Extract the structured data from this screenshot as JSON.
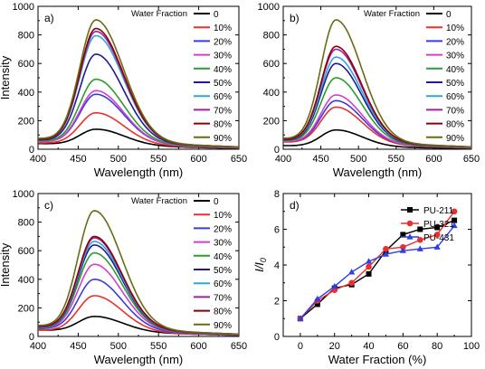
{
  "chart_data": [
    {
      "type": "line",
      "panel_label": "a)",
      "xlabel": "Wavelength (nm)",
      "ylabel": "Intensity",
      "xlim": [
        400,
        650
      ],
      "ylim": [
        0,
        1000
      ],
      "xticks": [
        "400",
        "450",
        "500",
        "550",
        "600",
        "650"
      ],
      "yticks": [
        "0",
        "200",
        "400",
        "600",
        "800",
        "1000"
      ],
      "legend_title": "Water Fraction",
      "legend_position": "top-right",
      "peak_nm": 472,
      "series": [
        {
          "name": "0",
          "color": "#000000",
          "peak": 140,
          "base_start": 40,
          "base_end": 5
        },
        {
          "name": "10%",
          "color": "#e8312f",
          "peak": 255,
          "base_start": 45,
          "base_end": 8
        },
        {
          "name": "20%",
          "color": "#3b3bd8",
          "peak": 385,
          "base_start": 55,
          "base_end": 10
        },
        {
          "name": "30%",
          "color": "#d040d0",
          "peak": 410,
          "base_start": 55,
          "base_end": 10
        },
        {
          "name": "40%",
          "color": "#2e9b2e",
          "peak": 490,
          "base_start": 60,
          "base_end": 12
        },
        {
          "name": "50%",
          "color": "#1c1c8e",
          "peak": 665,
          "base_start": 65,
          "base_end": 14
        },
        {
          "name": "60%",
          "color": "#2ea6e0",
          "peak": 795,
          "base_start": 70,
          "base_end": 15
        },
        {
          "name": "70%",
          "color": "#a020a0",
          "peak": 825,
          "base_start": 70,
          "base_end": 15
        },
        {
          "name": "80%",
          "color": "#8b0000",
          "peak": 845,
          "base_start": 70,
          "base_end": 16
        },
        {
          "name": "90%",
          "color": "#6b6b12",
          "peak": 905,
          "base_start": 75,
          "base_end": 16
        }
      ]
    },
    {
      "type": "line",
      "panel_label": "b)",
      "xlabel": "Wavelength (nm)",
      "ylabel": "",
      "xlim": [
        400,
        650
      ],
      "ylim": [
        0,
        1000
      ],
      "xticks": [
        "400",
        "450",
        "500",
        "550",
        "600",
        "650"
      ],
      "yticks": [
        "0",
        "200",
        "400",
        "600",
        "800",
        "1000"
      ],
      "legend_title": "Water Fraction",
      "legend_position": "top-right",
      "peak_nm": 470,
      "series": [
        {
          "name": "0",
          "color": "#000000",
          "peak": 135,
          "base_start": 25,
          "base_end": 5
        },
        {
          "name": "10%",
          "color": "#e8312f",
          "peak": 295,
          "base_start": 50,
          "base_end": 8
        },
        {
          "name": "20%",
          "color": "#3b3bd8",
          "peak": 340,
          "base_start": 55,
          "base_end": 10
        },
        {
          "name": "30%",
          "color": "#d040d0",
          "peak": 380,
          "base_start": 55,
          "base_end": 10
        },
        {
          "name": "40%",
          "color": "#2e9b2e",
          "peak": 500,
          "base_start": 60,
          "base_end": 12
        },
        {
          "name": "50%",
          "color": "#1c1c8e",
          "peak": 600,
          "base_start": 65,
          "base_end": 14
        },
        {
          "name": "60%",
          "color": "#2ea6e0",
          "peak": 645,
          "base_start": 70,
          "base_end": 15
        },
        {
          "name": "70%",
          "color": "#a020a0",
          "peak": 700,
          "base_start": 70,
          "base_end": 15
        },
        {
          "name": "80%",
          "color": "#8b0000",
          "peak": 720,
          "base_start": 70,
          "base_end": 16
        },
        {
          "name": "90%",
          "color": "#6b6b12",
          "peak": 905,
          "base_start": 75,
          "base_end": 16
        }
      ]
    },
    {
      "type": "line",
      "panel_label": "c)",
      "xlabel": "Wavelength (nm)",
      "ylabel": "Intensity",
      "xlim": [
        400,
        650
      ],
      "ylim": [
        0,
        1000
      ],
      "xticks": [
        "400",
        "450",
        "500",
        "550",
        "600",
        "650"
      ],
      "yticks": [
        "0",
        "200",
        "400",
        "600",
        "800",
        "1000"
      ],
      "legend_title": "Water Fraction",
      "legend_position": "top-right",
      "peak_nm": 470,
      "series": [
        {
          "name": "0",
          "color": "#000000",
          "peak": 140,
          "base_start": 45,
          "base_end": 8
        },
        {
          "name": "10%",
          "color": "#e8312f",
          "peak": 285,
          "base_start": 45,
          "base_end": 8
        },
        {
          "name": "20%",
          "color": "#3b3bd8",
          "peak": 400,
          "base_start": 55,
          "base_end": 10
        },
        {
          "name": "30%",
          "color": "#d040d0",
          "peak": 505,
          "base_start": 60,
          "base_end": 12
        },
        {
          "name": "40%",
          "color": "#2e9b2e",
          "peak": 585,
          "base_start": 62,
          "base_end": 13
        },
        {
          "name": "50%",
          "color": "#1c1c8e",
          "peak": 640,
          "base_start": 65,
          "base_end": 14
        },
        {
          "name": "60%",
          "color": "#2ea6e0",
          "peak": 665,
          "base_start": 68,
          "base_end": 15
        },
        {
          "name": "70%",
          "color": "#a020a0",
          "peak": 690,
          "base_start": 70,
          "base_end": 15
        },
        {
          "name": "80%",
          "color": "#8b0000",
          "peak": 700,
          "base_start": 70,
          "base_end": 16
        },
        {
          "name": "90%",
          "color": "#6b6b12",
          "peak": 880,
          "base_start": 75,
          "base_end": 16
        }
      ]
    },
    {
      "type": "line",
      "panel_label": "d)",
      "xlabel": "Water Fraction (%)",
      "ylabel_main": "I/I",
      "ylabel_sub": "0",
      "xlim": [
        -10,
        100
      ],
      "ylim": [
        0,
        8
      ],
      "xticks": [
        0,
        20,
        40,
        60,
        80,
        100
      ],
      "yticks": [
        0,
        2,
        4,
        6,
        8
      ],
      "legend_position": "top-right",
      "x": [
        0,
        10,
        20,
        30,
        40,
        50,
        60,
        70,
        80,
        90
      ],
      "series": [
        {
          "name": "PU-211",
          "color": "#000000",
          "marker": "square",
          "values": [
            1.0,
            1.8,
            2.7,
            2.9,
            3.5,
            4.8,
            5.7,
            6.0,
            6.1,
            6.5
          ]
        },
        {
          "name": "PU-321",
          "color": "#e8312f",
          "marker": "circle",
          "values": [
            1.0,
            2.0,
            2.6,
            3.0,
            3.9,
            4.9,
            5.0,
            5.4,
            5.7,
            7.0
          ]
        },
        {
          "name": "PU-431",
          "color": "#2f3fe0",
          "marker": "triangle",
          "values": [
            1.0,
            2.1,
            2.8,
            3.6,
            4.2,
            4.6,
            4.8,
            4.9,
            5.0,
            6.2
          ]
        }
      ]
    }
  ]
}
